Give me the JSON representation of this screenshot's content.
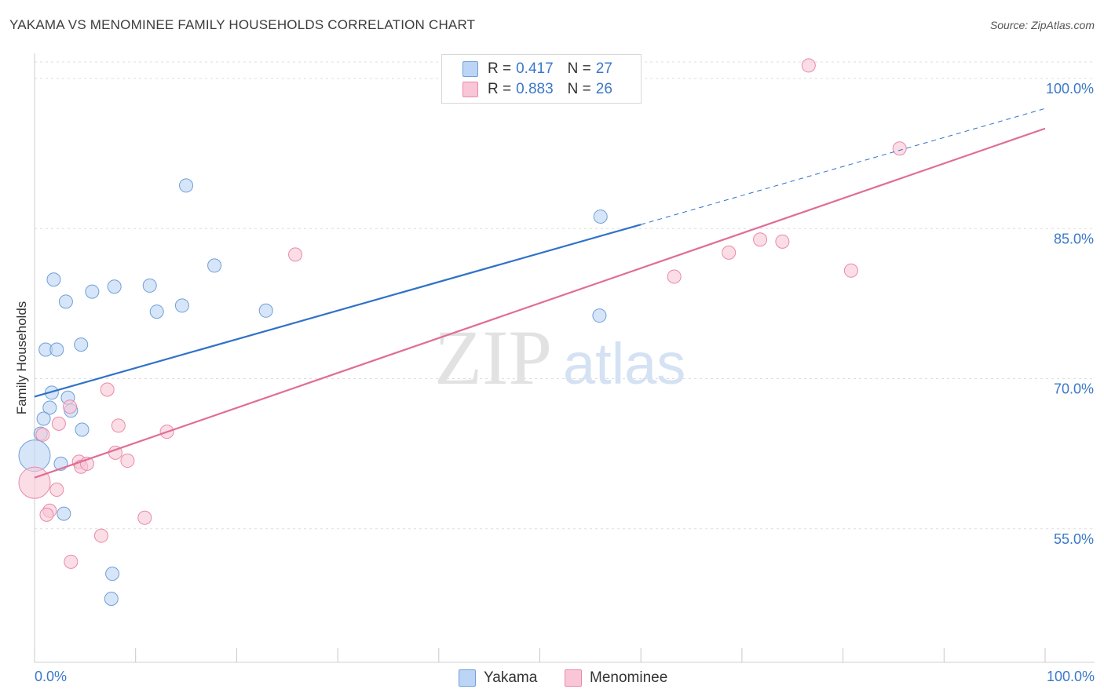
{
  "title": "YAKAMA VS MENOMINEE FAMILY HOUSEHOLDS CORRELATION CHART",
  "source": "Source: ZipAtlas.com",
  "watermark": {
    "zip": "ZIP",
    "atlas": "atlas"
  },
  "legend": {
    "r_label": "R =",
    "n_label": "N =",
    "rows": [
      {
        "r": "0.417",
        "n": "27"
      },
      {
        "r": "0.883",
        "n": "26"
      }
    ]
  },
  "colors": {
    "yakama_fill": "#bcd4f5",
    "yakama_stroke": "#6f9fd8",
    "yakama_line": "#2f72c8",
    "menominee_fill": "#f8c6d6",
    "menominee_stroke": "#e88aaa",
    "menominee_line": "#e06d95",
    "tick_text": "#3b78c8",
    "grid": "#dddddd"
  },
  "chart_data": {
    "type": "scatter",
    "title": "YAKAMA VS MENOMINEE FAMILY HOUSEHOLDS CORRELATION CHART",
    "xlabel": "",
    "ylabel": "Family Households",
    "xlim": [
      0,
      100
    ],
    "ylim": [
      40,
      101.5
    ],
    "x_tick_labels": [
      "0.0%",
      "100.0%"
    ],
    "y_ticks": [
      55,
      70,
      85,
      100
    ],
    "y_tick_labels": [
      "55.0%",
      "70.0%",
      "85.0%",
      "100.0%"
    ],
    "grid": true,
    "series": [
      {
        "name": "Yakama",
        "r": 0.417,
        "n": 27,
        "trend": {
          "x0": 0,
          "y0": 68.2,
          "x1": 60,
          "y1": 85.4,
          "dashed_to_x": 100,
          "dashed_to_y": 97.0
        },
        "points": [
          {
            "x": 15.0,
            "y": 89.3,
            "big": false
          },
          {
            "x": 56.0,
            "y": 86.2,
            "big": false
          },
          {
            "x": 17.8,
            "y": 81.3,
            "big": false
          },
          {
            "x": 1.9,
            "y": 79.9,
            "big": false
          },
          {
            "x": 7.9,
            "y": 79.2,
            "big": false
          },
          {
            "x": 11.4,
            "y": 79.3,
            "big": false
          },
          {
            "x": 5.7,
            "y": 78.7,
            "big": false
          },
          {
            "x": 3.1,
            "y": 77.7,
            "big": false
          },
          {
            "x": 12.1,
            "y": 76.7,
            "big": false
          },
          {
            "x": 14.6,
            "y": 77.3,
            "big": false
          },
          {
            "x": 22.9,
            "y": 76.8,
            "big": false
          },
          {
            "x": 55.9,
            "y": 76.3,
            "big": false
          },
          {
            "x": 4.6,
            "y": 73.4,
            "big": false
          },
          {
            "x": 1.1,
            "y": 72.9,
            "big": false
          },
          {
            "x": 2.2,
            "y": 72.9,
            "big": false
          },
          {
            "x": 1.7,
            "y": 68.6,
            "big": false
          },
          {
            "x": 3.3,
            "y": 68.1,
            "big": false
          },
          {
            "x": 1.5,
            "y": 67.1,
            "big": false
          },
          {
            "x": 3.6,
            "y": 66.8,
            "big": false
          },
          {
            "x": 0.9,
            "y": 66.0,
            "big": false
          },
          {
            "x": 0.6,
            "y": 64.5,
            "big": false
          },
          {
            "x": 4.7,
            "y": 64.9,
            "big": false
          },
          {
            "x": 0.0,
            "y": 62.3,
            "big": true
          },
          {
            "x": 2.6,
            "y": 61.5,
            "big": false
          },
          {
            "x": 2.9,
            "y": 56.5,
            "big": false
          },
          {
            "x": 7.7,
            "y": 50.5,
            "big": false
          },
          {
            "x": 7.6,
            "y": 48.0,
            "big": false
          }
        ]
      },
      {
        "name": "Menominee",
        "r": 0.883,
        "n": 26,
        "trend": {
          "x0": 0,
          "y0": 60.1,
          "x1": 100,
          "y1": 95.0
        },
        "points": [
          {
            "x": 76.6,
            "y": 101.3,
            "big": false
          },
          {
            "x": 85.6,
            "y": 93.0,
            "big": false
          },
          {
            "x": 25.8,
            "y": 82.4,
            "big": false
          },
          {
            "x": 71.8,
            "y": 83.9,
            "big": false
          },
          {
            "x": 74.0,
            "y": 83.7,
            "big": false
          },
          {
            "x": 68.7,
            "y": 82.6,
            "big": false
          },
          {
            "x": 80.8,
            "y": 80.8,
            "big": false
          },
          {
            "x": 63.3,
            "y": 80.2,
            "big": false
          },
          {
            "x": 7.2,
            "y": 68.9,
            "big": false
          },
          {
            "x": 3.5,
            "y": 67.2,
            "big": false
          },
          {
            "x": 2.4,
            "y": 65.5,
            "big": false
          },
          {
            "x": 8.3,
            "y": 65.3,
            "big": false
          },
          {
            "x": 13.1,
            "y": 64.7,
            "big": false
          },
          {
            "x": 0.8,
            "y": 64.4,
            "big": false
          },
          {
            "x": 8.0,
            "y": 62.6,
            "big": false
          },
          {
            "x": 4.4,
            "y": 61.7,
            "big": false
          },
          {
            "x": 4.6,
            "y": 61.2,
            "big": false
          },
          {
            "x": 9.2,
            "y": 61.8,
            "big": false
          },
          {
            "x": 0.0,
            "y": 59.6,
            "big": true
          },
          {
            "x": 2.2,
            "y": 58.9,
            "big": false
          },
          {
            "x": 1.5,
            "y": 56.8,
            "big": false
          },
          {
            "x": 1.2,
            "y": 56.4,
            "big": false
          },
          {
            "x": 10.9,
            "y": 56.1,
            "big": false
          },
          {
            "x": 6.6,
            "y": 54.3,
            "big": false
          },
          {
            "x": 3.6,
            "y": 51.7,
            "big": false
          },
          {
            "x": 5.2,
            "y": 61.5,
            "big": false
          }
        ]
      }
    ]
  }
}
